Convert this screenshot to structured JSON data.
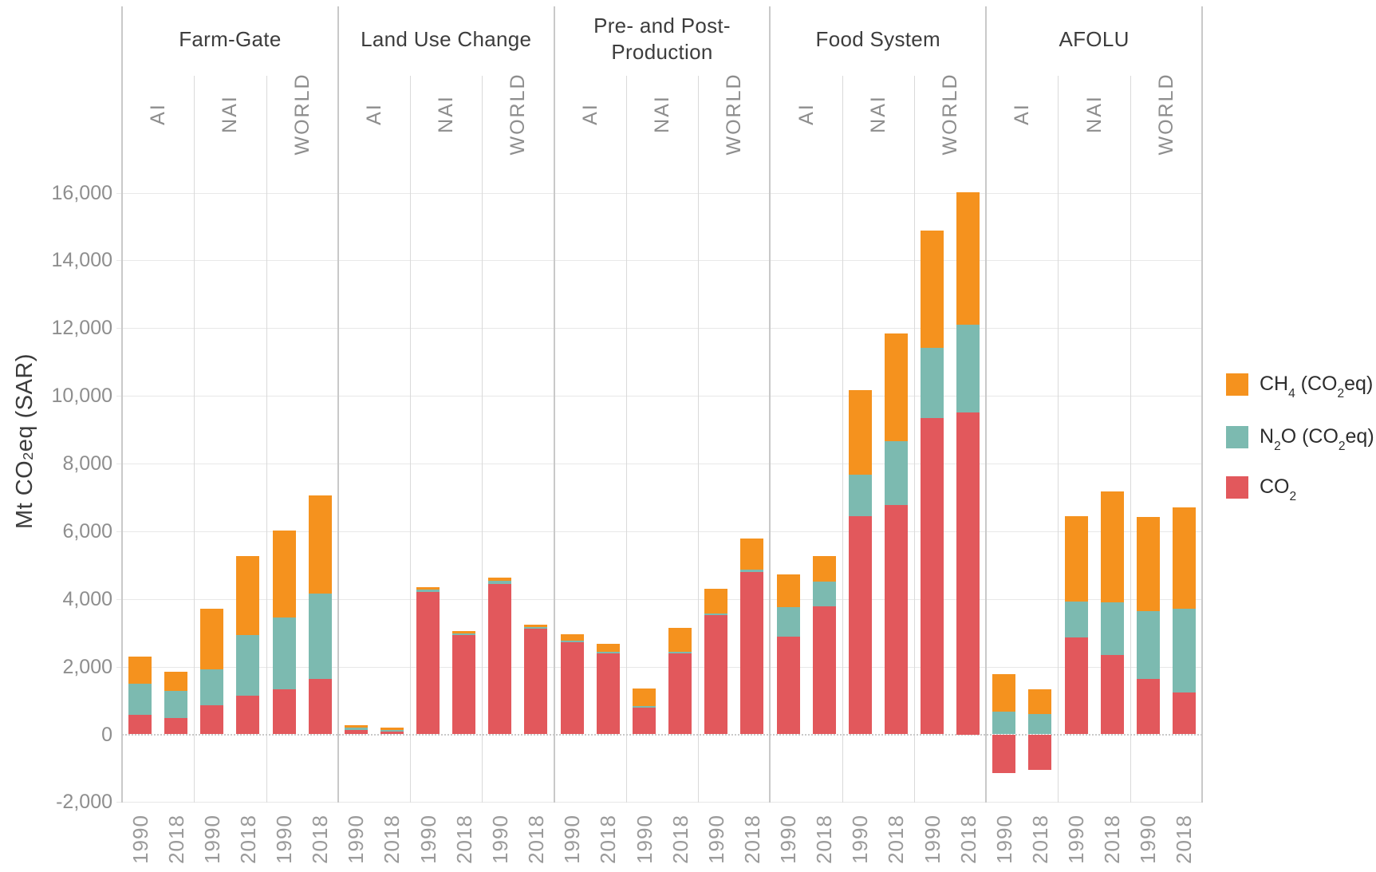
{
  "y_axis": {
    "title": "Mt CO~2~eq (SAR)",
    "min": -2000,
    "max": 16000,
    "step": 2000,
    "ticks": [
      {
        "label": "16,000",
        "value": 16000
      },
      {
        "label": "14,000",
        "value": 14000
      },
      {
        "label": "12,000",
        "value": 12000
      },
      {
        "label": "10,000",
        "value": 10000
      },
      {
        "label": "8,000",
        "value": 8000
      },
      {
        "label": "6,000",
        "value": 6000
      },
      {
        "label": "4,000",
        "value": 4000
      },
      {
        "label": "2,000",
        "value": 2000
      },
      {
        "label": "0",
        "value": 0
      },
      {
        "label": "-2,000",
        "value": -2000
      }
    ]
  },
  "legend": {
    "items": [
      {
        "label": "CH~4~ (CO~2~eq)",
        "series": "ch4",
        "color": "#f5921e"
      },
      {
        "label": "N~2~O (CO~2~eq)",
        "series": "n2o",
        "color": "#7cbab0"
      },
      {
        "label": "CO~2~",
        "series": "co2",
        "color": "#e2585c"
      }
    ]
  },
  "colors": {
    "ch4": "#f5921e",
    "n2o": "#7cbab0",
    "co2": "#e2585c",
    "gridline": "#e8e8e8",
    "zero_line": "#c9c9c9",
    "group_divider": "#c9c9c9",
    "subgroup_divider": "#dadada"
  },
  "chart_data": {
    "type": "bar",
    "stacked": true,
    "unit": "Mt CO2eq (SAR)",
    "gas_stack_order_bottom_to_top": [
      "co2",
      "n2o",
      "ch4"
    ],
    "years": [
      "1990",
      "2018"
    ],
    "ylim": [
      -2000,
      16000
    ],
    "grid": true,
    "legend_position": "right",
    "groups": [
      {
        "name": "Farm-Gate",
        "subgroups": [
          {
            "name": "AI",
            "bars": [
              {
                "year": "1990",
                "co2": 580,
                "n2o": 910,
                "ch4": 815
              },
              {
                "year": "2018",
                "co2": 480,
                "n2o": 800,
                "ch4": 575
              }
            ]
          },
          {
            "name": "NAI",
            "bars": [
              {
                "year": "1990",
                "co2": 850,
                "n2o": 1070,
                "ch4": 1800
              },
              {
                "year": "2018",
                "co2": 1140,
                "n2o": 1790,
                "ch4": 2340
              }
            ]
          },
          {
            "name": "WORLD",
            "bars": [
              {
                "year": "1990",
                "co2": 1340,
                "n2o": 2110,
                "ch4": 2560
              },
              {
                "year": "2018",
                "co2": 1630,
                "n2o": 2540,
                "ch4": 2890
              }
            ]
          }
        ]
      },
      {
        "name": "Land Use Change",
        "subgroups": [
          {
            "name": "AI",
            "bars": [
              {
                "year": "1990",
                "co2": 120,
                "n2o": 70,
                "ch4": 85
              },
              {
                "year": "2018",
                "co2": 80,
                "n2o": 45,
                "ch4": 70
              }
            ]
          },
          {
            "name": "NAI",
            "bars": [
              {
                "year": "1990",
                "co2": 4200,
                "n2o": 75,
                "ch4": 80
              },
              {
                "year": "2018",
                "co2": 2930,
                "n2o": 50,
                "ch4": 70
              }
            ]
          },
          {
            "name": "WORLD",
            "bars": [
              {
                "year": "1990",
                "co2": 4445,
                "n2o": 95,
                "ch4": 90
              },
              {
                "year": "2018",
                "co2": 3120,
                "n2o": 60,
                "ch4": 70
              }
            ]
          }
        ]
      },
      {
        "name": "Pre- and Post-Production",
        "subgroups": [
          {
            "name": "AI",
            "bars": [
              {
                "year": "1990",
                "co2": 2720,
                "n2o": 40,
                "ch4": 200
              },
              {
                "year": "2018",
                "co2": 2400,
                "n2o": 40,
                "ch4": 240
              }
            ]
          },
          {
            "name": "NAI",
            "bars": [
              {
                "year": "1990",
                "co2": 780,
                "n2o": 50,
                "ch4": 530
              },
              {
                "year": "2018",
                "co2": 2390,
                "n2o": 45,
                "ch4": 710
              }
            ]
          },
          {
            "name": "WORLD",
            "bars": [
              {
                "year": "1990",
                "co2": 3520,
                "n2o": 60,
                "ch4": 710
              },
              {
                "year": "2018",
                "co2": 4800,
                "n2o": 75,
                "ch4": 905
              }
            ]
          }
        ]
      },
      {
        "name": "Food System",
        "subgroups": [
          {
            "name": "AI",
            "bars": [
              {
                "year": "1990",
                "co2": 2880,
                "n2o": 870,
                "ch4": 975
              },
              {
                "year": "2018",
                "co2": 3785,
                "n2o": 725,
                "ch4": 755
              }
            ]
          },
          {
            "name": "NAI",
            "bars": [
              {
                "year": "1990",
                "co2": 6450,
                "n2o": 1230,
                "ch4": 2490
              },
              {
                "year": "2018",
                "co2": 6775,
                "n2o": 1880,
                "ch4": 3185
              }
            ]
          },
          {
            "name": "WORLD",
            "bars": [
              {
                "year": "1990",
                "co2": 9345,
                "n2o": 2075,
                "ch4": 3450
              },
              {
                "year": "2018",
                "co2": 9500,
                "n2o": 2590,
                "ch4": 3915
              }
            ]
          }
        ]
      },
      {
        "name": "AFOLU",
        "subgroups": [
          {
            "name": "AI",
            "bars": [
              {
                "year": "1990",
                "co2": -1135,
                "n2o": 665,
                "ch4": 1105
              },
              {
                "year": "2018",
                "co2": -1060,
                "n2o": 590,
                "ch4": 745
              }
            ]
          },
          {
            "name": "NAI",
            "bars": [
              {
                "year": "1990",
                "co2": 2870,
                "n2o": 1050,
                "ch4": 2530
              },
              {
                "year": "2018",
                "co2": 2350,
                "n2o": 1550,
                "ch4": 3270
              }
            ]
          },
          {
            "name": "WORLD",
            "bars": [
              {
                "year": "1990",
                "co2": 1645,
                "n2o": 2005,
                "ch4": 2775
              },
              {
                "year": "2018",
                "co2": 1240,
                "n2o": 2465,
                "ch4": 3000
              }
            ]
          }
        ]
      }
    ]
  }
}
